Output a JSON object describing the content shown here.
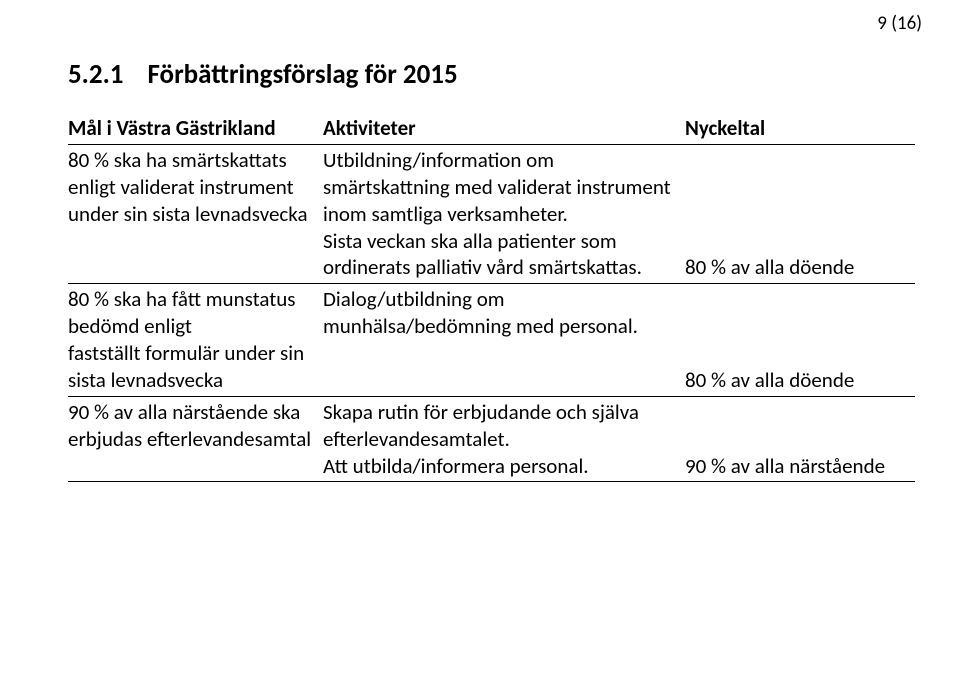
{
  "page_number": "9 (16)",
  "heading_number": "5.2.1",
  "heading_text": "Förbättringsförslag för 2015",
  "table": {
    "header": {
      "col1": "Mål i Västra Gästrikland",
      "col2": "Aktiviteter",
      "col3": "Nyckeltal"
    },
    "rows": [
      {
        "col1": "80 % ska ha smärtskattats enligt validerat instrument under sin sista levnadsvecka",
        "col2": "Utbildning/information om smärtskattning med validerat instrument inom samtliga verksamheter.\nSista veckan ska alla patienter som ordinerats palliativ vård smärtskattas.",
        "col3": "80 % av alla döende"
      },
      {
        "col1": "80 % ska ha fått munstatus bedömd enligt\nfastställt formulär under sin sista levnadsvecka",
        "col2": "Dialog/utbildning om munhälsa/bedömning med personal.",
        "col3": "80 % av alla döende"
      },
      {
        "col1": "90 % av alla närstående ska erbjudas efterlevandesamtal",
        "col2": "Skapa rutin för erbjudande och själva efterlevandesamtalet.\nAtt utbilda/informera personal.",
        "col3": "90 % av alla närstående"
      }
    ]
  },
  "colors": {
    "text": "#000000",
    "background": "#ffffff",
    "border": "#000000"
  },
  "font": {
    "family": "Calibri",
    "body_size_pt": 16,
    "heading_size_pt": 20
  }
}
